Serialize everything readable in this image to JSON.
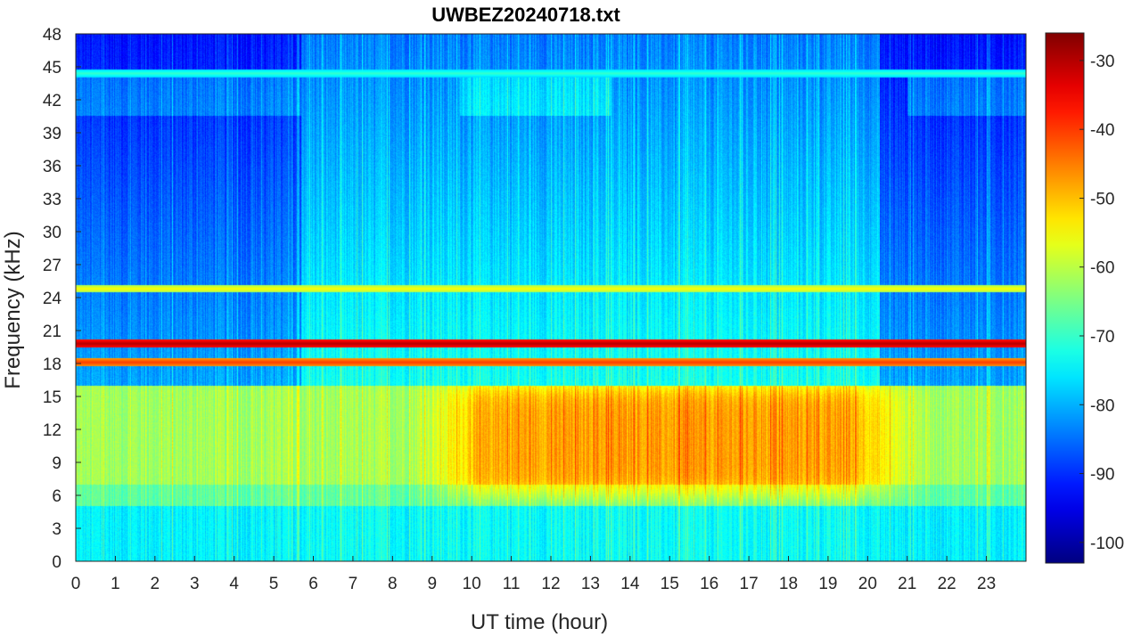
{
  "chart_data": {
    "type": "heatmap",
    "title": "UWBEZ20240718.txt",
    "xlabel": "UT time (hour)",
    "ylabel": "Frequency (kHz)",
    "xlim": [
      0,
      24
    ],
    "ylim": [
      0,
      48
    ],
    "x_ticks": [
      0,
      1,
      2,
      3,
      4,
      5,
      6,
      7,
      8,
      9,
      10,
      11,
      12,
      13,
      14,
      15,
      16,
      17,
      18,
      19,
      20,
      21,
      22,
      23
    ],
    "y_ticks": [
      0,
      3,
      6,
      9,
      12,
      15,
      18,
      21,
      24,
      27,
      30,
      33,
      36,
      39,
      42,
      45,
      48
    ],
    "colormap": "jet",
    "colorbar": {
      "clim": [
        -103,
        -26
      ],
      "ticks": [
        -30,
        -40,
        -50,
        -60,
        -70,
        -80,
        -90,
        -100
      ]
    },
    "narrowband_lines_khz": [
      {
        "freq": 19.8,
        "level_db": -30
      },
      {
        "freq": 18.1,
        "level_db": -40
      },
      {
        "freq": 24.8,
        "level_db": -55
      },
      {
        "freq": 44.4,
        "level_db": -70
      }
    ],
    "broadband_daytime_enhancement": {
      "hours": [
        9.5,
        20.5
      ],
      "freq_khz": [
        6,
        16
      ],
      "peak_level_db": -48
    }
  }
}
